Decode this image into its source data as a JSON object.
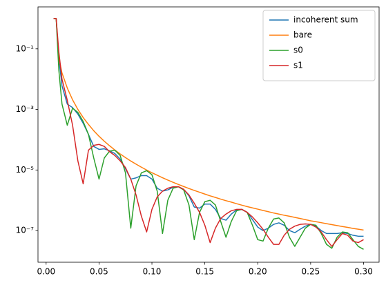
{
  "chart_data": {
    "type": "line",
    "log_y": true,
    "legend": "upper right",
    "xlim": [
      -0.0077,
      0.3147
    ],
    "ylim": [
      9e-09,
      2.43
    ],
    "xticks": [
      {
        "value": 0,
        "label": "0.00"
      },
      {
        "value": 0.05,
        "label": "0.05"
      },
      {
        "value": 0.1,
        "label": "0.10"
      },
      {
        "value": 0.15,
        "label": "0.15"
      },
      {
        "value": 0.2,
        "label": "0.20"
      },
      {
        "value": 0.25,
        "label": "0.25"
      },
      {
        "value": 0.3,
        "label": "0.30"
      }
    ],
    "yticks": [
      {
        "value": 1e-07,
        "label": "10⁻⁷"
      },
      {
        "value": 1e-05,
        "label": "10⁻⁵"
      },
      {
        "value": 0.001,
        "label": "10⁻³"
      },
      {
        "value": 0.1,
        "label": "10⁻¹"
      }
    ],
    "x": [
      0.007,
      0.0095,
      0.012,
      0.015,
      0.02,
      0.025,
      0.03,
      0.035,
      0.04,
      0.045,
      0.05,
      0.055,
      0.06,
      0.065,
      0.07,
      0.075,
      0.08,
      0.085,
      0.09,
      0.095,
      0.1,
      0.105,
      0.11,
      0.115,
      0.12,
      0.125,
      0.13,
      0.135,
      0.14,
      0.145,
      0.15,
      0.155,
      0.16,
      0.165,
      0.17,
      0.175,
      0.18,
      0.185,
      0.19,
      0.195,
      0.2,
      0.205,
      0.21,
      0.215,
      0.22,
      0.225,
      0.23,
      0.235,
      0.24,
      0.245,
      0.25,
      0.255,
      0.26,
      0.265,
      0.27,
      0.275,
      0.28,
      0.285,
      0.29,
      0.295,
      0.3
    ],
    "series": [
      {
        "name": "incoherent sum",
        "color": "#1f77b4",
        "values": [
          1,
          1,
          0.05,
          0.006,
          0.0015,
          0.00115,
          0.0007,
          0.00035,
          0.00015,
          6e-05,
          4.8e-05,
          5e-05,
          4.3e-05,
          3.5e-05,
          2.3e-05,
          1.1e-05,
          5e-06,
          5.5e-06,
          6.5e-06,
          6.5e-06,
          5e-06,
          2.5e-06,
          2e-06,
          2.2e-06,
          2.7e-06,
          2.8e-06,
          2.3e-06,
          1.4e-06,
          6e-07,
          5.5e-07,
          7.5e-07,
          7.5e-07,
          5e-07,
          2.5e-07,
          2.2e-07,
          3.5e-07,
          4.8e-07,
          5e-07,
          4e-07,
          2.3e-07,
          1.3e-07,
          1e-07,
          1.2e-07,
          1.6e-07,
          1.8e-07,
          1.5e-07,
          1e-07,
          8.5e-08,
          1.1e-07,
          1.4e-07,
          1.6e-07,
          1.4e-07,
          1e-07,
          8e-08,
          8e-08,
          8e-08,
          8.5e-08,
          8e-08,
          7e-08,
          6.5e-08,
          6.5e-08
        ]
      },
      {
        "name": "bare",
        "color": "#ff7f0e",
        "values": [
          1,
          1,
          0.05,
          0.016,
          0.0051,
          0.00208,
          0.001,
          0.00054,
          0.00032,
          0.000198,
          0.00013,
          8.9e-05,
          6.3e-05,
          4.55e-05,
          3.38e-05,
          2.57e-05,
          1.98e-05,
          1.56e-05,
          1.24e-05,
          9.98e-06,
          8.1e-06,
          6.7e-06,
          5.55e-06,
          4.65e-06,
          3.92e-06,
          3.33e-06,
          2.85e-06,
          2.45e-06,
          2.12e-06,
          1.84e-06,
          1.6e-06,
          1.4e-06,
          1.24e-06,
          1.09e-06,
          9.7e-07,
          8.7e-07,
          7.7e-07,
          6.9e-07,
          6.2e-07,
          5.6e-07,
          5.1e-07,
          4.6e-07,
          4.2e-07,
          3.8e-07,
          3.5e-07,
          3.2e-07,
          2.97e-07,
          2.73e-07,
          2.5e-07,
          2.3e-07,
          2.1e-07,
          1.96e-07,
          1.82e-07,
          1.69e-07,
          1.57e-07,
          1.46e-07,
          1.36e-07,
          1.27e-07,
          1.18e-07,
          1.11e-07,
          1.04e-07
        ]
      },
      {
        "name": "s0",
        "color": "#2ca02c",
        "values": [
          1,
          1,
          0.02,
          0.0015,
          0.0003,
          0.0011,
          0.0008,
          0.0004,
          0.00015,
          2.5e-05,
          5e-06,
          2.5e-05,
          4.2e-05,
          4.5e-05,
          3e-05,
          8e-06,
          1.2e-07,
          3e-06,
          8e-06,
          9.5e-06,
          7e-06,
          2e-06,
          8e-08,
          1e-06,
          2.5e-06,
          2.8e-06,
          2.2e-06,
          7e-07,
          5e-08,
          4e-07,
          9e-07,
          1e-06,
          7e-07,
          2e-07,
          6e-08,
          2e-07,
          4.5e-07,
          5e-07,
          4e-07,
          1.5e-07,
          5e-08,
          4.5e-08,
          1.2e-07,
          2.4e-07,
          2.6e-07,
          1.8e-07,
          6e-08,
          3e-08,
          6e-08,
          1.2e-07,
          1.6e-07,
          1.5e-07,
          8e-08,
          3.5e-08,
          2.6e-08,
          6e-08,
          9e-08,
          8.5e-08,
          5e-08,
          3e-08,
          2.4e-08
        ]
      },
      {
        "name": "s1",
        "color": "#d62728",
        "values": [
          1,
          1,
          0.08,
          0.01,
          0.002,
          0.0003,
          2e-05,
          3.5e-06,
          4.5e-05,
          6.5e-05,
          7e-05,
          6e-05,
          4e-05,
          3e-05,
          2e-05,
          1.2e-05,
          5e-06,
          1.5e-06,
          3e-07,
          9e-08,
          5e-07,
          1.3e-06,
          2e-06,
          2.5e-06,
          2.8e-06,
          2.8e-06,
          2.3e-06,
          1.5e-06,
          8e-07,
          4e-07,
          1.5e-07,
          4e-08,
          1.2e-07,
          2.5e-07,
          3.5e-07,
          4.5e-07,
          5e-07,
          5e-07,
          4e-07,
          2.8e-07,
          1.8e-07,
          1.1e-07,
          6e-08,
          3.5e-08,
          3.5e-08,
          7e-08,
          1.1e-07,
          1.4e-07,
          1.6e-07,
          1.65e-07,
          1.6e-07,
          1.3e-07,
          9e-08,
          5e-08,
          3e-08,
          5e-08,
          8e-08,
          7e-08,
          4.5e-08,
          4e-08,
          5e-08
        ]
      }
    ]
  }
}
